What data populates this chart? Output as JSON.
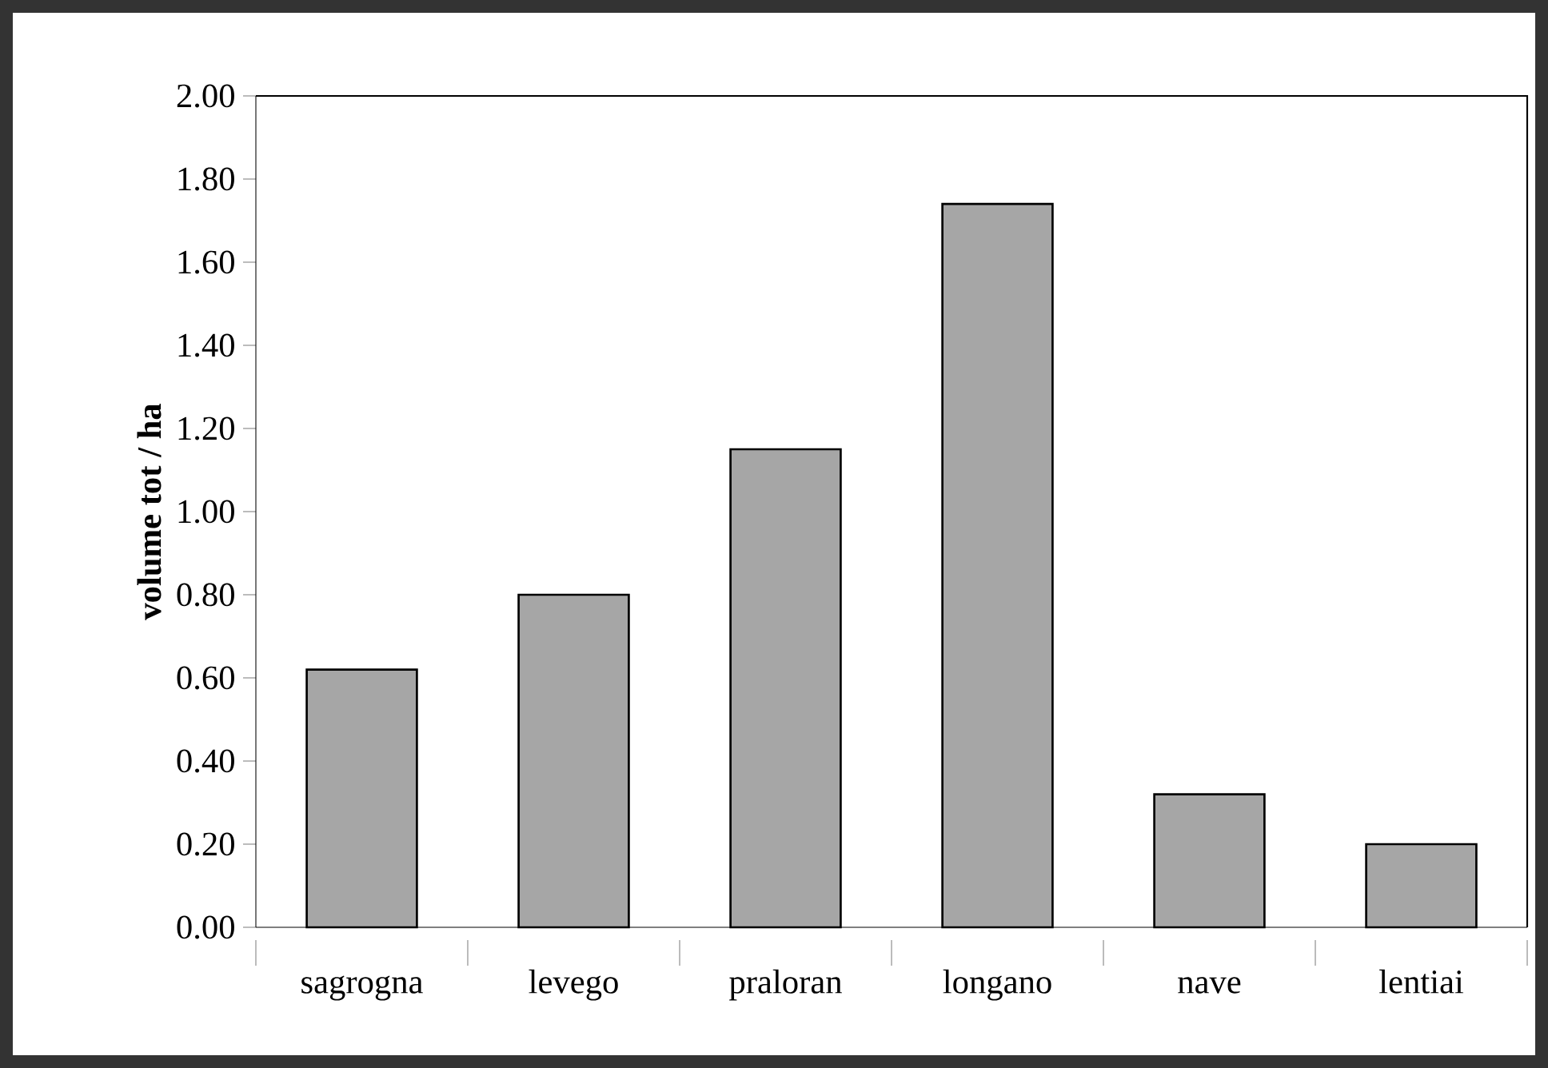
{
  "chart_data": {
    "type": "bar",
    "ylabel": "volume tot / ha",
    "categories": [
      "sagrogna",
      "levego",
      "praloran",
      "longano",
      "nave",
      "lentiai"
    ],
    "values": [
      0.62,
      0.8,
      1.15,
      1.74,
      0.32,
      0.2
    ],
    "color": "#a6a6a6",
    "ylim": [
      0,
      2
    ],
    "yticks": [
      {
        "value": 0,
        "label": "0.00"
      },
      {
        "value": 0.2,
        "label": "0.20"
      },
      {
        "value": 0.4,
        "label": "0.40"
      },
      {
        "value": 0.6,
        "label": "0.60"
      },
      {
        "value": 0.8,
        "label": "0.80"
      },
      {
        "value": 1,
        "label": "1.00"
      },
      {
        "value": 1.2,
        "label": "1.20"
      },
      {
        "value": 1.4,
        "label": "1.40"
      },
      {
        "value": 1.6,
        "label": "1.60"
      },
      {
        "value": 1.8,
        "label": "1.80"
      },
      {
        "value": 2,
        "label": "2.00"
      }
    ],
    "grid": false
  }
}
